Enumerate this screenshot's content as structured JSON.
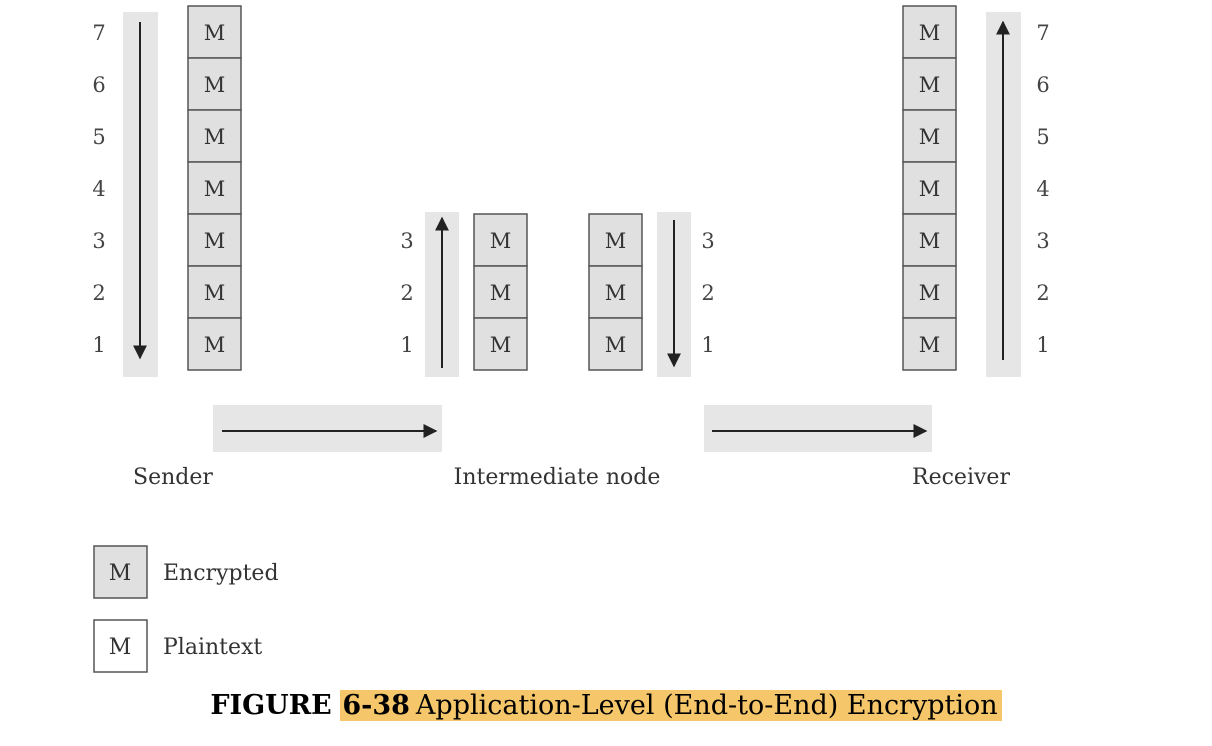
{
  "colors": {
    "encrypted_fill": "#e0e0e0",
    "plaintext_fill": "#ffffff",
    "track_fill": "#e6e6e6",
    "highlight": "#f5c76a",
    "stroke": "#555555"
  },
  "box_label": "M",
  "sender": {
    "label": "Sender",
    "layers": [
      "7",
      "6",
      "5",
      "4",
      "3",
      "2",
      "1"
    ],
    "direction": "down"
  },
  "intermediate": {
    "label": "Intermediate node",
    "in_layers": [
      "3",
      "2",
      "1"
    ],
    "out_layers": [
      "3",
      "2",
      "1"
    ],
    "in_direction": "up",
    "out_direction": "down"
  },
  "receiver": {
    "label": "Receiver",
    "layers": [
      "7",
      "6",
      "5",
      "4",
      "3",
      "2",
      "1"
    ],
    "direction": "up"
  },
  "legend": {
    "encrypted_label": "Encrypted",
    "plaintext_label": "Plaintext"
  },
  "caption": {
    "figure_word": "FIGURE",
    "figure_number": "6-38",
    "title": "Application-Level (End-to-End) Encryption"
  }
}
